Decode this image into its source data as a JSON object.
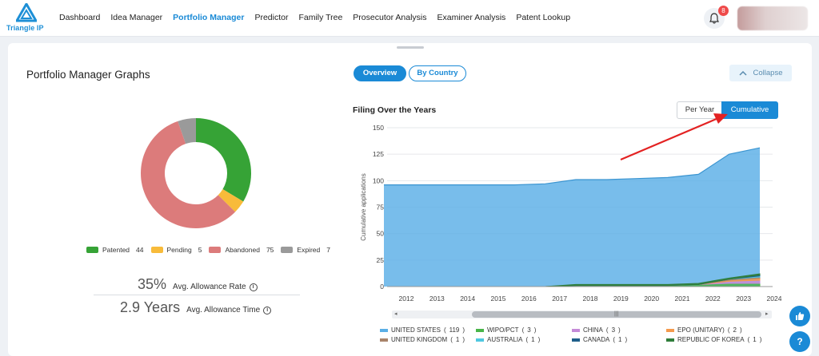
{
  "brand": {
    "name": "Triangle IP"
  },
  "nav": {
    "items": [
      {
        "label": "Dashboard",
        "active": false
      },
      {
        "label": "Idea Manager",
        "active": false
      },
      {
        "label": "Portfolio Manager",
        "active": true
      },
      {
        "label": "Predictor",
        "active": false
      },
      {
        "label": "Family Tree",
        "active": false
      },
      {
        "label": "Prosecutor Analysis",
        "active": false
      },
      {
        "label": "Examiner Analysis",
        "active": false
      },
      {
        "label": "Patent Lookup",
        "active": false
      }
    ],
    "notification_count": "8"
  },
  "page": {
    "title": "Portfolio Manager Graphs",
    "tabs": {
      "overview": "Overview",
      "by_country": "By Country"
    },
    "collapse_label": "Collapse"
  },
  "status_pie": {
    "items": [
      {
        "label": "Patented",
        "value": 44,
        "color": "#36a336"
      },
      {
        "label": "Pending",
        "value": 5,
        "color": "#f8bb3a"
      },
      {
        "label": "Abandoned",
        "value": 75,
        "color": "#dc7b7b"
      },
      {
        "label": "Expired",
        "value": 7,
        "color": "#9a9a9a"
      }
    ]
  },
  "stats": {
    "allowance_rate": {
      "value": "35%",
      "label": "Avg. Allowance Rate"
    },
    "allowance_time": {
      "value": "2.9 Years",
      "label": "Avg. Allowance Time"
    }
  },
  "filing_chart": {
    "title": "Filing Over the Years",
    "modes": {
      "per_year": "Per Year",
      "cumulative": "Cumulative"
    },
    "active_mode": "cumulative"
  },
  "chart_data": {
    "type": "area",
    "ylabel": "Cumulative applications",
    "ylim": [
      0,
      150
    ],
    "yticks": [
      0,
      25,
      50,
      75,
      100,
      125,
      150
    ],
    "x": [
      "2012",
      "2013",
      "2014",
      "2015",
      "2016",
      "2017",
      "2018",
      "2019",
      "2020",
      "2021",
      "2022",
      "2023",
      "2024"
    ],
    "series": [
      {
        "name": "UNITED STATES",
        "total": 119,
        "color": "#5aafe6",
        "values": [
          96,
          96,
          96,
          96,
          96,
          97,
          101,
          101,
          102,
          103,
          106,
          125,
          131
        ]
      },
      {
        "name": "WIPO/PCT",
        "total": 3,
        "color": "#48b548",
        "values": [
          0,
          0,
          0,
          0,
          0,
          0,
          1,
          1,
          1,
          1,
          2,
          3,
          3
        ]
      },
      {
        "name": "CHINA",
        "total": 3,
        "color": "#c58bd8",
        "values": [
          0,
          0,
          0,
          0,
          0,
          0,
          0,
          0,
          0,
          0,
          0,
          2,
          3
        ]
      },
      {
        "name": "EPO (UNITARY)",
        "total": 2,
        "color": "#f49a4d",
        "values": [
          0,
          0,
          0,
          0,
          0,
          0,
          0,
          0,
          0,
          0,
          0,
          1,
          2
        ]
      },
      {
        "name": "UNITED KINGDOM",
        "total": 1,
        "color": "#a9846a",
        "values": [
          0,
          0,
          0,
          0,
          0,
          0,
          0,
          0,
          0,
          0,
          0,
          1,
          1
        ]
      },
      {
        "name": "AUSTRALIA",
        "total": 1,
        "color": "#4fc8e0",
        "values": [
          0,
          0,
          0,
          0,
          0,
          0,
          0,
          0,
          0,
          0,
          0,
          0,
          1
        ]
      },
      {
        "name": "CANADA",
        "total": 1,
        "color": "#1f5f8a",
        "values": [
          0,
          0,
          0,
          0,
          0,
          0,
          0,
          0,
          0,
          0,
          0,
          0,
          1
        ]
      },
      {
        "name": "REPUBLIC OF KOREA",
        "total": 1,
        "color": "#2f7d3a",
        "values": [
          0,
          0,
          0,
          0,
          0,
          0,
          1,
          1,
          1,
          1,
          1,
          1,
          1
        ]
      }
    ],
    "grid": true,
    "legend": "bottom"
  }
}
